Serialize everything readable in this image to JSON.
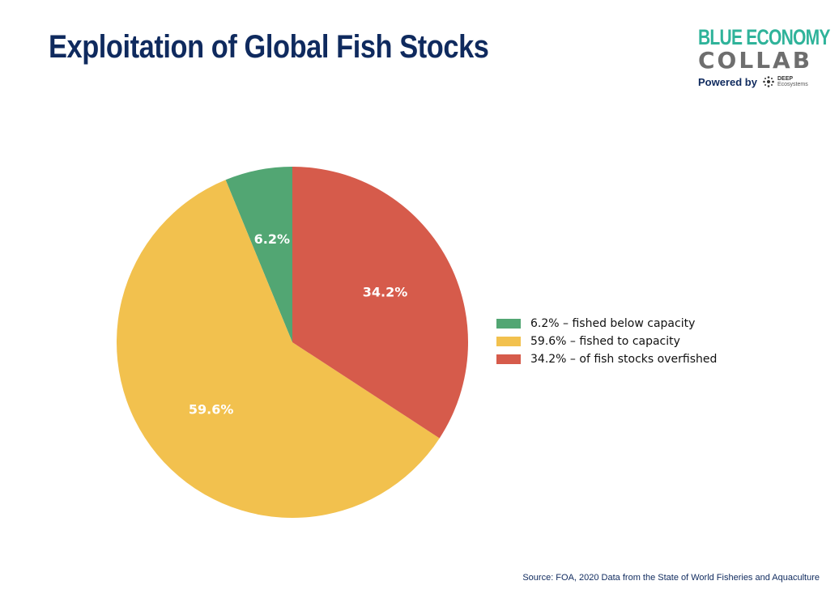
{
  "header": {
    "title": "Exploitation of Global Fish Stocks"
  },
  "logo": {
    "line1": "BLUE ECONOMY",
    "line2": "COLLAB",
    "powered_by": "Powered by",
    "partner_line1": "DEEP",
    "partner_line2": "Ecosystems",
    "icon": "dots-cluster-icon",
    "colors": {
      "line1": "#2fb39a",
      "line2": "#6e6e6e",
      "powered": "#0f2a5e"
    }
  },
  "footer": {
    "source": "Source: FOA, 2020 Data from the State of World Fisheries and Aquaculture"
  },
  "chart_data": {
    "type": "pie",
    "title": "",
    "start_angle_deg": 90,
    "direction": "counterclockwise",
    "slices": [
      {
        "value": 6.2,
        "label": "6.2%",
        "legend": "6.2% – fished below capacity",
        "color": "#52a673"
      },
      {
        "value": 59.6,
        "label": "59.6%",
        "legend": "59.6% – fished to capacity",
        "color": "#f2c14e"
      },
      {
        "value": 34.2,
        "label": "34.2%",
        "legend": "34.2% – of fish stocks overfished",
        "color": "#d65b4b"
      }
    ],
    "legend_position": "right"
  }
}
